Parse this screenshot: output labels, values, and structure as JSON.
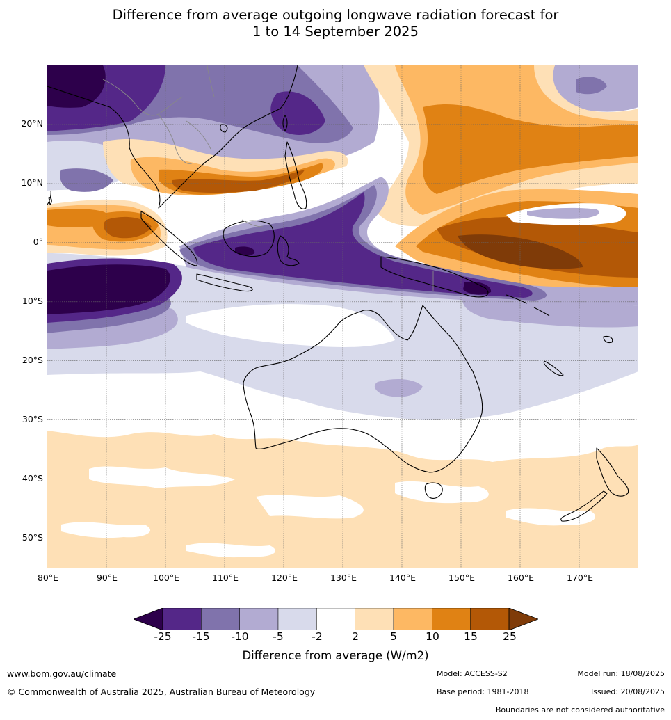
{
  "title": {
    "line1": "Difference from average outgoing longwave radiation forecast for",
    "line2": "1 to 14 September 2025"
  },
  "map": {
    "lat_labels": [
      "20°N",
      "10°N",
      "0°",
      "10°S",
      "20°S",
      "30°S",
      "40°S",
      "50°S"
    ],
    "lon_labels": [
      "80°E",
      "90°E",
      "100°E",
      "110°E",
      "120°E",
      "130°E",
      "140°E",
      "150°E",
      "160°E",
      "170°E"
    ],
    "extent": {
      "lon": [
        80,
        180
      ],
      "lat": [
        -55,
        30
      ]
    }
  },
  "legend": {
    "ticks": [
      "-25",
      "-15",
      "-10",
      "-5",
      "-2",
      "2",
      "5",
      "10",
      "15",
      "25"
    ],
    "colors": [
      "#2d004b",
      "#542788",
      "#8073ac",
      "#b2abd2",
      "#d8daeb",
      "#ffffff",
      "#fee0b6",
      "#fdb863",
      "#e08214",
      "#b35806",
      "#7f3b08"
    ],
    "label": "Difference from average (W/m2)"
  },
  "footer": {
    "website": "www.bom.gov.au/climate",
    "copyright": "© Commonwealth of Australia 2025, Australian Bureau of Meteorology",
    "model": "Model: ACCESS-S2",
    "base_period": "Base period: 1981-2018",
    "model_run": "Model run: 18/08/2025",
    "issued": "Issued: 20/08/2025",
    "disclaimer": "Boundaries are not considered authoritative"
  }
}
